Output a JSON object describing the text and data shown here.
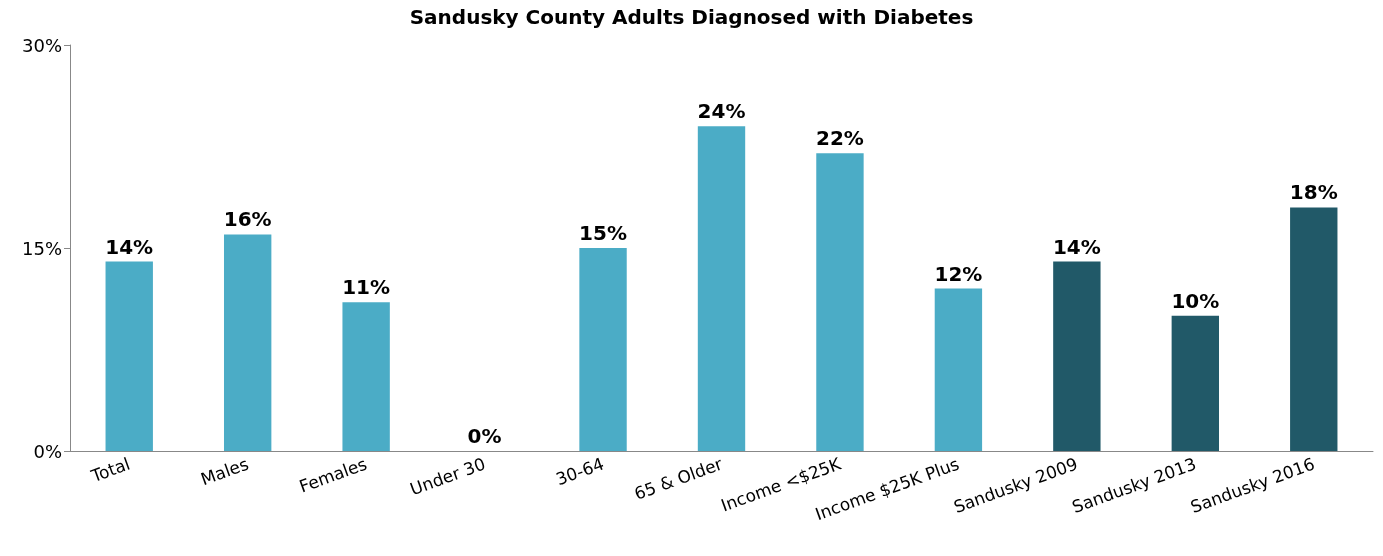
{
  "chart_data": {
    "type": "bar",
    "title": "Sandusky County Adults Diagnosed with Diabetes",
    "categories": [
      "Total",
      "Males",
      "Females",
      "Under 30",
      "30-64",
      "65 & Older",
      "Income <$25K",
      "Income $25K Plus",
      "Sandusky 2009",
      "Sandusky 2013",
      "Sandusky 2016"
    ],
    "values": [
      14,
      16,
      11,
      0,
      15,
      24,
      22,
      12,
      14,
      10,
      18
    ],
    "colors": [
      "#4bacc6",
      "#4bacc6",
      "#4bacc6",
      "#4bacc6",
      "#4bacc6",
      "#4bacc6",
      "#4bacc6",
      "#4bacc6",
      "#215968",
      "#215968",
      "#215968"
    ],
    "value_labels": [
      "14%",
      "16%",
      "11%",
      "0%",
      "15%",
      "24%",
      "22%",
      "12%",
      "14%",
      "10%",
      "18%"
    ],
    "ylim": [
      0,
      30
    ],
    "yticks": [
      {
        "value": 0,
        "label": "0%"
      },
      {
        "value": 15,
        "label": "15%"
      },
      {
        "value": 30,
        "label": "30%"
      }
    ],
    "grid": false
  }
}
